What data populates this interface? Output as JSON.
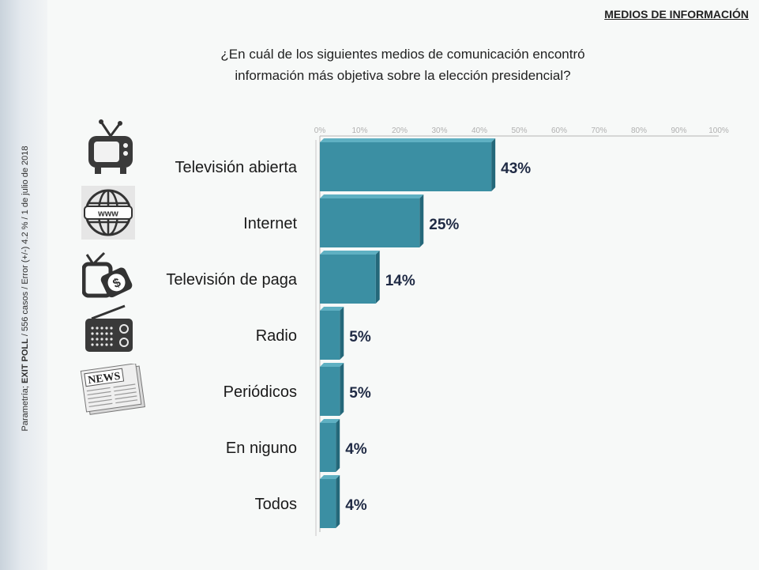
{
  "header": {
    "section_title": "MEDIOS DE INFORMACIÓN"
  },
  "question": {
    "line1": "¿En cuál de los siguientes medios de comunicación encontró",
    "line2": "información más objetiva sobre la elección presidencial?"
  },
  "side_note": {
    "prefix": "Parametría; ",
    "bold": "EXIT POLL",
    "suffix": " / 556 casos / Error (+/-) 4.2 % / 1 de julio de 2018"
  },
  "icons": [
    "tv-icon",
    "www-globe-icon",
    "pay-tv-icon",
    "radio-icon",
    "newspaper-icon"
  ],
  "news_icon_text": "NEWS",
  "colors": {
    "bar": "#3b8fa3",
    "bar_top": "#5fb0c2",
    "bar_side": "#24687a",
    "label": "#1f2a44"
  },
  "chart_data": {
    "type": "bar",
    "orientation": "horizontal",
    "categories": [
      "Televisión abierta",
      "Internet",
      "Televisión de paga",
      "Radio",
      "Periódicos",
      "En niguno",
      "Todos"
    ],
    "values": [
      43,
      25,
      14,
      5,
      5,
      4,
      4
    ],
    "value_labels": [
      "43%",
      "25%",
      "14%",
      "5%",
      "5%",
      "4%",
      "4%"
    ],
    "xlim": [
      0,
      100
    ],
    "x_ticks": [
      "0%",
      "10%",
      "20%",
      "30%",
      "40%",
      "50%",
      "60%",
      "70%",
      "80%",
      "90%",
      "100%"
    ],
    "grid": false,
    "legend": "none"
  }
}
